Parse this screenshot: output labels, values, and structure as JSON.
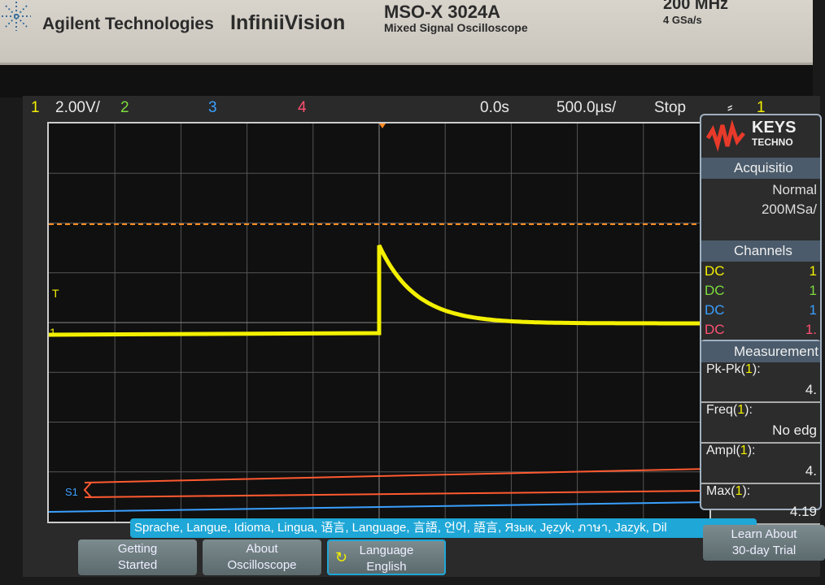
{
  "bezel": {
    "brand": "Agilent Technologies",
    "series": "InfiniiVision",
    "model": "MSO-X 3024A",
    "model_desc": "Mixed Signal Oscilloscope",
    "bandwidth": "200 MHz",
    "sample_rate": "4 GSa/s"
  },
  "status": {
    "ch1": "1",
    "ch1_scale": "2.00V/",
    "ch2": "2",
    "ch3": "3",
    "ch4": "4",
    "delay": "0.0s",
    "timebase": "500.0µs/",
    "run_state": "Stop",
    "trigger_icon": "rising-edge-icon",
    "trigger_source": "1"
  },
  "colors": {
    "ch1": "#f3f000",
    "ch2": "#7cdc3c",
    "ch3": "#3aa0ff",
    "ch4": "#ff5070",
    "trigger_level": "#ff8a20"
  },
  "panel": {
    "brand": "KEYS",
    "brand_sub": "TECHNO",
    "acquisition_title": "Acquisitio",
    "acq_mode": "Normal",
    "acq_rate": "200MSa/",
    "channels_title": "Channels",
    "channels": [
      {
        "coupling": "DC",
        "value": "1"
      },
      {
        "coupling": "DC",
        "value": "1"
      },
      {
        "coupling": "DC",
        "value": "1"
      },
      {
        "coupling": "DC",
        "value": "1."
      }
    ]
  },
  "measurements": {
    "title": "Measurement",
    "items": [
      {
        "label": "Pk-Pk(",
        "src": "1",
        "end": "):",
        "value": "4."
      },
      {
        "label": "Freq(",
        "src": "1",
        "end": "):",
        "value": "No edg"
      },
      {
        "label": "Ampl(",
        "src": "1",
        "end": "):",
        "value": "4."
      },
      {
        "label": "Max(",
        "src": "1",
        "end": "):",
        "value": "4.19"
      }
    ]
  },
  "markers": {
    "trigger": "T",
    "ch1": "1",
    "digital": "S1"
  },
  "tooltip": "Sprache, Langue, Idioma, Lingua, 语言, Language, 言語, 언어, 語言, Язык, Język, ภาษา, Jazyk, Dil",
  "softkeys": {
    "getting_started": [
      "Getting",
      "Started"
    ],
    "about": [
      "About",
      "Oscilloscope"
    ],
    "language": [
      "Language",
      "English"
    ],
    "trial": [
      "Learn About",
      "30-day Trial"
    ]
  }
}
